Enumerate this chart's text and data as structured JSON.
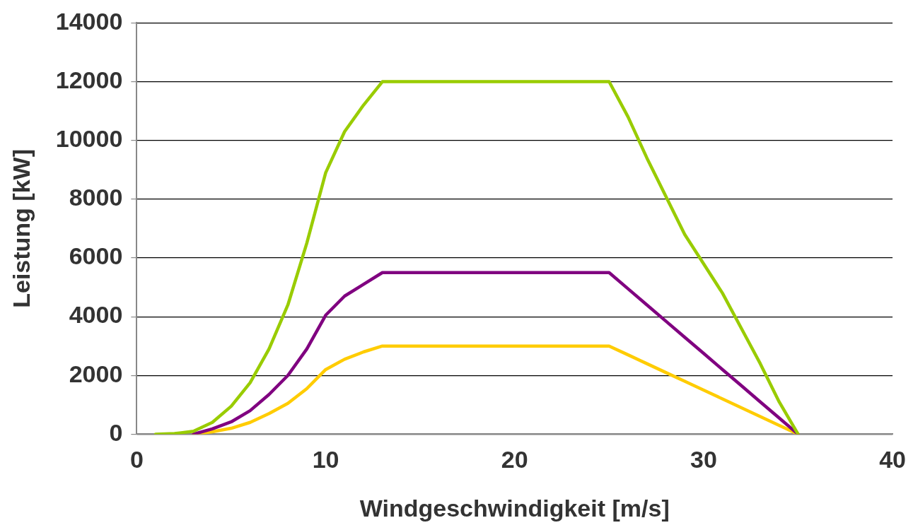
{
  "chart_data": {
    "type": "line",
    "xlabel": "Windgeschwindigkeit [m/s]",
    "ylabel": "Leistung [kW]",
    "x": [
      1,
      2,
      3,
      4,
      5,
      6,
      7,
      8,
      9,
      10,
      11,
      12,
      13,
      25,
      26,
      27,
      28,
      29,
      30,
      31,
      32,
      33,
      34,
      35
    ],
    "series": [
      {
        "color": "#99cc00",
        "values": [
          0,
          20,
          100,
          400,
          950,
          1750,
          2900,
          4400,
          6500,
          8900,
          10300,
          11200,
          12000,
          12000,
          10800,
          9400,
          8100,
          6800,
          5800,
          4800,
          3600,
          2400,
          1100,
          0
        ]
      },
      {
        "color": "#800080",
        "values": [
          null,
          null,
          0,
          180,
          420,
          800,
          1350,
          2000,
          2900,
          4050,
          4700,
          5100,
          5500,
          5500,
          4950,
          4400,
          3850,
          3300,
          2750,
          2200,
          1650,
          1100,
          550,
          0
        ]
      },
      {
        "color": "#ffcc00",
        "values": [
          null,
          null,
          0,
          80,
          200,
          400,
          700,
          1050,
          1550,
          2200,
          2550,
          2800,
          3000,
          3000,
          2700,
          2400,
          2100,
          1800,
          1500,
          1200,
          900,
          600,
          300,
          0
        ]
      }
    ],
    "xlim": [
      0,
      40
    ],
    "xticks": [
      0,
      10,
      20,
      30,
      40
    ],
    "ylim": [
      0,
      14000
    ],
    "yticks": [
      0,
      2000,
      4000,
      6000,
      8000,
      10000,
      12000,
      14000
    ],
    "grid": "y",
    "legend": false,
    "marker": "none",
    "line_style": "solid"
  }
}
